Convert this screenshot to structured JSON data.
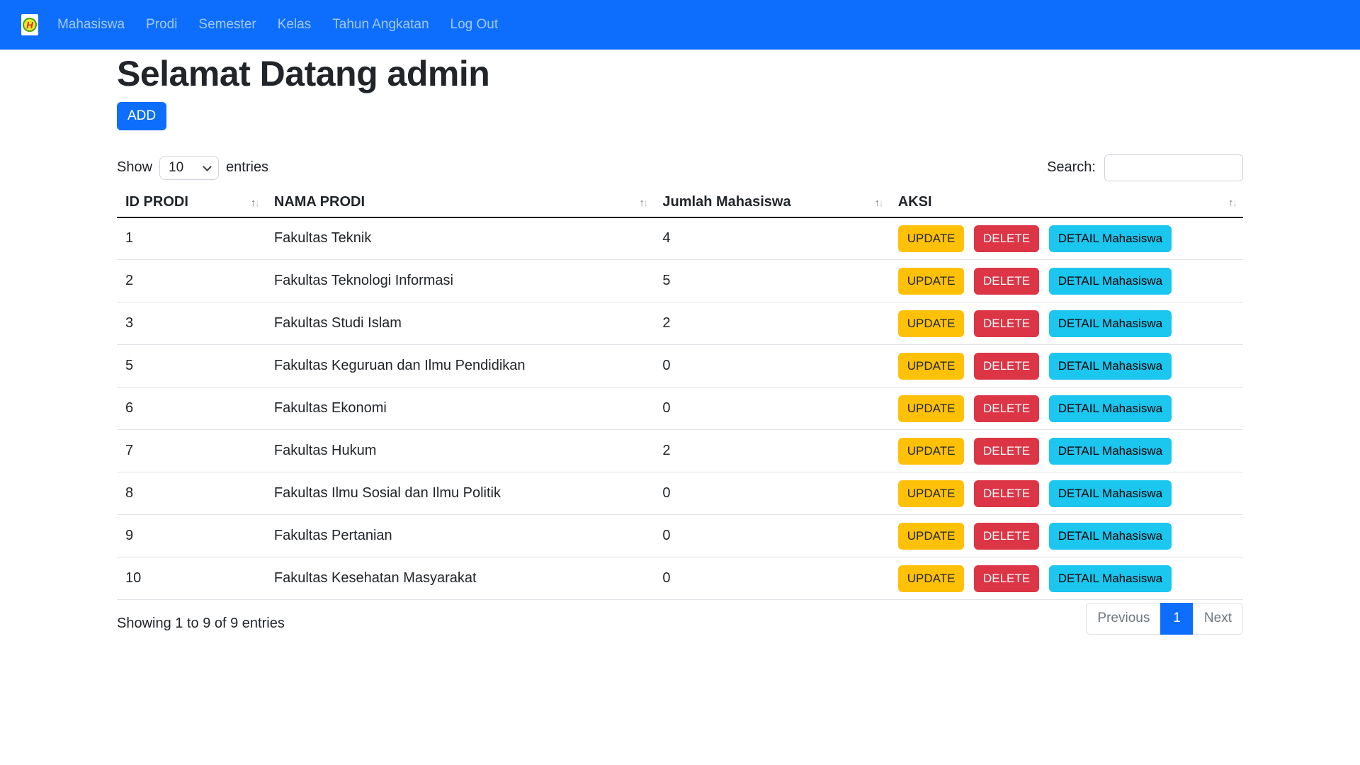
{
  "navbar": {
    "brand_letter": "H",
    "items": [
      {
        "label": "Mahasiswa"
      },
      {
        "label": "Prodi"
      },
      {
        "label": "Semester"
      },
      {
        "label": "Kelas"
      },
      {
        "label": "Tahun Angkatan"
      },
      {
        "label": "Log Out"
      }
    ]
  },
  "header": {
    "title": "Selamat Datang admin",
    "add_button": "ADD"
  },
  "controls": {
    "show_label": "Show",
    "page_length": "10",
    "entries_label": "entries",
    "search_label": "Search:",
    "search_value": ""
  },
  "table": {
    "columns": [
      {
        "label": "ID PRODI"
      },
      {
        "label": "NAMA PRODI"
      },
      {
        "label": "Jumlah Mahasiswa"
      },
      {
        "label": "AKSI"
      }
    ],
    "sort_up": "↑",
    "sort_down": "↓",
    "actions": {
      "update": "UPDATE",
      "delete": "DELETE",
      "detail": "DETAIL Mahasiswa"
    },
    "rows": [
      {
        "id": "1",
        "nama": "Fakultas Teknik",
        "jumlah": "4"
      },
      {
        "id": "2",
        "nama": "Fakultas Teknologi Informasi",
        "jumlah": "5"
      },
      {
        "id": "3",
        "nama": "Fakultas Studi Islam",
        "jumlah": "2"
      },
      {
        "id": "5",
        "nama": "Fakultas Keguruan dan Ilmu Pendidikan",
        "jumlah": "0"
      },
      {
        "id": "6",
        "nama": "Fakultas Ekonomi",
        "jumlah": "0"
      },
      {
        "id": "7",
        "nama": "Fakultas Hukum",
        "jumlah": "2"
      },
      {
        "id": "8",
        "nama": "Fakultas Ilmu Sosial dan Ilmu Politik",
        "jumlah": "0"
      },
      {
        "id": "9",
        "nama": "Fakultas Pertanian",
        "jumlah": "0"
      },
      {
        "id": "10",
        "nama": "Fakultas Kesehatan Masyarakat",
        "jumlah": "0"
      }
    ]
  },
  "footer": {
    "info": "Showing 1 to 9 of 9 entries",
    "pagination": {
      "previous": "Previous",
      "current": "1",
      "next": "Next"
    }
  },
  "colors": {
    "navbar_bg": "#0d6efd",
    "primary": "#0d6efd",
    "warning": "#ffc107",
    "danger": "#dc3545",
    "info": "#1bc6ef",
    "logo_circle": "#ede431",
    "logo_ring": "#4aa312",
    "logo_letter": "#d42a1e"
  }
}
